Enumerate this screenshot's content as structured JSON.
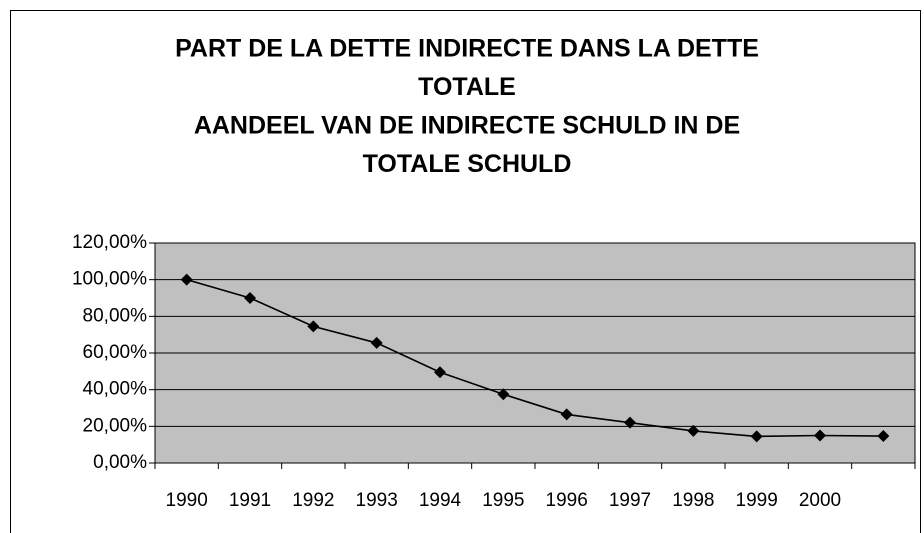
{
  "chart_data": {
    "type": "line",
    "title": [
      "PART DE LA DETTE INDIRECTE DANS LA DETTE",
      "TOTALE",
      "AANDEEL VAN DE INDIRECTE SCHULD IN DE",
      "TOTALE SCHULD"
    ],
    "categories": [
      "1990",
      "1991",
      "1992",
      "1993",
      "1994",
      "1995",
      "1996",
      "1997",
      "1998",
      "1999",
      "2000",
      null
    ],
    "values": [
      100,
      90,
      74.5,
      65.5,
      49.5,
      37.5,
      26.5,
      22,
      17.5,
      14.5,
      15,
      14.7
    ],
    "color": "#000000",
    "plot_background": "#c0c0c0",
    "ylim": [
      0,
      120
    ],
    "yticks": [
      {
        "value": 0,
        "label": "0,00%"
      },
      {
        "value": 20,
        "label": "20,00%"
      },
      {
        "value": 40,
        "label": "40,00%"
      },
      {
        "value": 60,
        "label": "60,00%"
      },
      {
        "value": 80,
        "label": "80,00%"
      },
      {
        "value": 100,
        "label": "100,00%"
      },
      {
        "value": 120,
        "label": "120,00%"
      }
    ],
    "grid": true
  }
}
